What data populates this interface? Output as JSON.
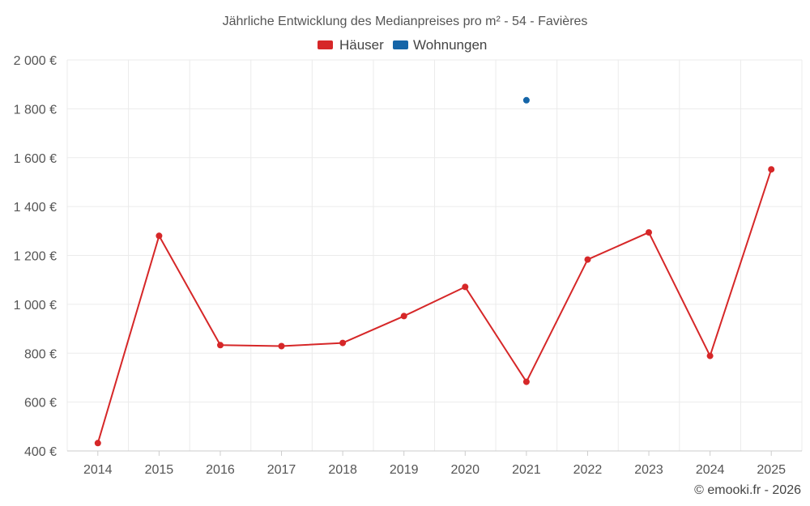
{
  "chart_data": {
    "type": "line",
    "title": "Jährliche Entwicklung des Medianpreises pro m² - 54 - Favières",
    "categories": [
      "2014",
      "2015",
      "2016",
      "2017",
      "2018",
      "2019",
      "2020",
      "2021",
      "2022",
      "2023",
      "2024",
      "2025"
    ],
    "series": [
      {
        "name": "Häuser",
        "color": "#d62728",
        "values": [
          432,
          1280,
          833,
          829,
          842,
          952,
          1071,
          683,
          1183,
          1294,
          789,
          1552
        ]
      },
      {
        "name": "Wohnungen",
        "color": "#1565a8",
        "values": [
          null,
          null,
          null,
          null,
          null,
          null,
          null,
          1835,
          null,
          null,
          null,
          null
        ]
      }
    ],
    "yticks": [
      400,
      600,
      800,
      1000,
      1200,
      1400,
      1600,
      1800,
      2000
    ],
    "ytick_labels": [
      "400 €",
      "600 €",
      "800 €",
      "1 000 €",
      "1 200 €",
      "1 400 €",
      "1 600 €",
      "1 800 €",
      "2 000 €"
    ],
    "ylim": [
      400,
      2000
    ],
    "grid": true,
    "legend_position": "top-center",
    "xlabel": "",
    "ylabel": ""
  },
  "credit": "© emooki.fr - 2026"
}
